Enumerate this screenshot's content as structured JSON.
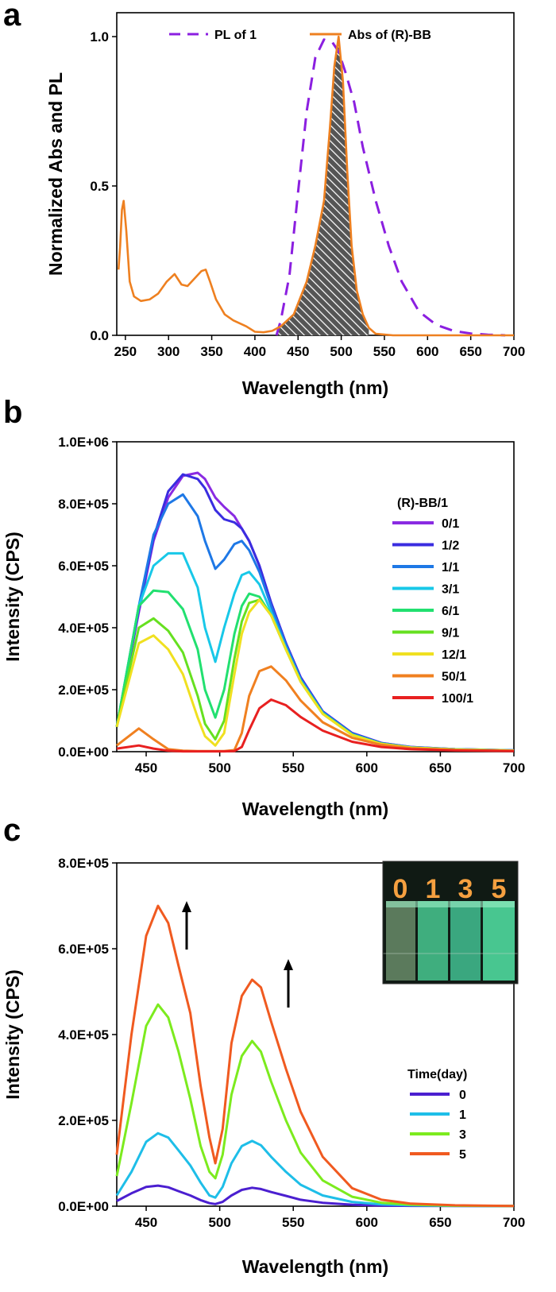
{
  "chart_data": [
    {
      "panel_label": "a",
      "type": "line",
      "xlabel": "Wavelength (nm)",
      "ylabel": "Normalized Abs and PL",
      "xlim": [
        240,
        700
      ],
      "ylim": [
        0,
        1.08
      ],
      "x_ticks": [
        "250",
        "300",
        "350",
        "400",
        "450",
        "500",
        "550",
        "600",
        "650",
        "700"
      ],
      "y_ticks": [
        "0.0",
        "0.5",
        "1.0"
      ],
      "legend_position": "top",
      "overlap_fill": "hatched grey area under the Abs curve between 425 and 530 nm",
      "series": [
        {
          "name": "PL of  1",
          "color": "#8B1FE0",
          "dash": "dashed",
          "x": [
            425,
            430,
            440,
            450,
            460,
            470,
            480,
            490,
            497,
            505,
            515,
            525,
            540,
            555,
            570,
            590,
            610,
            630,
            650,
            670,
            690
          ],
          "y": [
            0.0,
            0.05,
            0.2,
            0.48,
            0.75,
            0.93,
            0.99,
            0.98,
            0.95,
            0.88,
            0.78,
            0.63,
            0.45,
            0.3,
            0.18,
            0.08,
            0.035,
            0.015,
            0.006,
            0.002,
            0.0
          ]
        },
        {
          "name": "Abs of (R)-BB",
          "color": "#EE8020",
          "dash": "solid",
          "x": [
            242,
            244,
            246,
            248,
            251,
            255,
            260,
            268,
            278,
            288,
            298,
            307,
            315,
            322,
            330,
            338,
            343,
            348,
            355,
            365,
            375,
            390,
            400,
            410,
            420,
            430,
            445,
            460,
            470,
            480,
            487,
            492,
            497,
            502,
            507,
            512,
            518,
            525,
            532,
            540,
            560,
            600,
            650,
            700
          ],
          "y": [
            0.22,
            0.3,
            0.42,
            0.45,
            0.35,
            0.18,
            0.13,
            0.115,
            0.12,
            0.14,
            0.18,
            0.205,
            0.17,
            0.165,
            0.19,
            0.215,
            0.22,
            0.18,
            0.12,
            0.07,
            0.05,
            0.03,
            0.012,
            0.01,
            0.015,
            0.03,
            0.07,
            0.18,
            0.3,
            0.45,
            0.7,
            0.9,
            1.0,
            0.85,
            0.55,
            0.3,
            0.15,
            0.07,
            0.025,
            0.005,
            0.0,
            0.0,
            0.0,
            0.0
          ]
        }
      ]
    },
    {
      "panel_label": "b",
      "type": "line",
      "xlabel": "Wavelength (nm)",
      "ylabel": "Intensity (CPS)",
      "xlim": [
        430,
        700
      ],
      "ylim": [
        0,
        1000000
      ],
      "x_ticks": [
        "450",
        "500",
        "550",
        "600",
        "650",
        "700"
      ],
      "y_ticks": [
        "0.0E+00",
        "2.0E+05",
        "4.0E+05",
        "6.0E+05",
        "8.0E+05",
        "1.0E+06"
      ],
      "legend_title": "(R)-BB/1",
      "legend_position": "right",
      "x": [
        430,
        445,
        455,
        465,
        475,
        485,
        490,
        497,
        503,
        510,
        515,
        520,
        527,
        535,
        545,
        555,
        570,
        590,
        610,
        630,
        660,
        700
      ],
      "series": [
        {
          "name": "0/1",
          "color": "#8A2BE2",
          "values": [
            80000,
            450000,
            680000,
            820000,
            890000,
            900000,
            880000,
            820000,
            790000,
            760000,
            720000,
            680000,
            600000,
            480000,
            350000,
            240000,
            130000,
            60000,
            28000,
            15000,
            8000,
            4000
          ]
        },
        {
          "name": "1/2",
          "color": "#3A2DE0",
          "values": [
            80000,
            460000,
            690000,
            840000,
            895000,
            880000,
            850000,
            780000,
            750000,
            740000,
            720000,
            680000,
            600000,
            480000,
            350000,
            240000,
            130000,
            60000,
            28000,
            15000,
            8000,
            4000
          ]
        },
        {
          "name": "1/1",
          "color": "#1E78E6",
          "values": [
            80000,
            470000,
            700000,
            800000,
            830000,
            760000,
            680000,
            590000,
            620000,
            670000,
            680000,
            650000,
            580000,
            470000,
            345000,
            235000,
            128000,
            58000,
            27000,
            14000,
            8000,
            4000
          ]
        },
        {
          "name": "3/1",
          "color": "#18C8E8",
          "values": [
            80000,
            470000,
            600000,
            640000,
            640000,
            530000,
            400000,
            290000,
            400000,
            510000,
            570000,
            580000,
            540000,
            450000,
            335000,
            230000,
            125000,
            56000,
            26000,
            14000,
            7000,
            4000
          ]
        },
        {
          "name": "6/1",
          "color": "#22E070",
          "values": [
            80000,
            470000,
            520000,
            515000,
            460000,
            330000,
            200000,
            110000,
            200000,
            380000,
            470000,
            510000,
            500000,
            440000,
            330000,
            228000,
            124000,
            55000,
            26000,
            13000,
            7000,
            3500
          ]
        },
        {
          "name": "9/1",
          "color": "#66E020",
          "values": [
            80000,
            400000,
            430000,
            390000,
            320000,
            180000,
            90000,
            40000,
            100000,
            300000,
            420000,
            480000,
            490000,
            440000,
            330000,
            226000,
            122000,
            54000,
            25000,
            13000,
            7000,
            3500
          ]
        },
        {
          "name": "12/1",
          "color": "#F0E020",
          "values": [
            80000,
            350000,
            375000,
            330000,
            250000,
            110000,
            50000,
            20000,
            60000,
            250000,
            380000,
            450000,
            490000,
            440000,
            330000,
            226000,
            122000,
            54000,
            25000,
            13000,
            7000,
            3500
          ]
        },
        {
          "name": "50/1",
          "color": "#F08020",
          "values": [
            20000,
            75000,
            40000,
            8000,
            3000,
            2000,
            2000,
            2000,
            2000,
            5000,
            60000,
            180000,
            260000,
            275000,
            230000,
            165000,
            95000,
            45000,
            22000,
            11000,
            5000,
            2500
          ]
        },
        {
          "name": "100/1",
          "color": "#E82020",
          "values": [
            10000,
            20000,
            10000,
            3000,
            1000,
            1000,
            1000,
            1000,
            1000,
            2000,
            15000,
            70000,
            140000,
            168000,
            150000,
            112000,
            68000,
            32000,
            15000,
            8000,
            4000,
            2000
          ]
        }
      ]
    },
    {
      "panel_label": "c",
      "type": "line",
      "xlabel": "Wavelength (nm)",
      "ylabel": "Intensity (CPS)",
      "xlim": [
        430,
        700
      ],
      "ylim": [
        0,
        800000
      ],
      "x_ticks": [
        "450",
        "500",
        "550",
        "600",
        "650",
        "700"
      ],
      "y_ticks": [
        "0.0E+00",
        "2.0E+05",
        "4.0E+05",
        "6.0E+05",
        "8.0E+05"
      ],
      "legend_title": "Time(day)",
      "legend_position": "bottom-right",
      "inset_labels": [
        "0",
        "1",
        "3",
        "5"
      ],
      "x": [
        430,
        440,
        450,
        458,
        465,
        472,
        480,
        487,
        493,
        497,
        502,
        508,
        515,
        522,
        528,
        535,
        545,
        555,
        570,
        590,
        610,
        630,
        660,
        700
      ],
      "series": [
        {
          "name": "0",
          "color": "#4B1FD0",
          "values": [
            12000,
            30000,
            45000,
            48000,
            44000,
            35000,
            25000,
            14000,
            7000,
            5000,
            10000,
            25000,
            38000,
            43000,
            40000,
            33000,
            24000,
            15000,
            8000,
            3500,
            1500,
            800,
            300,
            100
          ]
        },
        {
          "name": "1",
          "color": "#1EBEE8",
          "values": [
            25000,
            80000,
            150000,
            170000,
            160000,
            130000,
            95000,
            55000,
            25000,
            20000,
            45000,
            100000,
            140000,
            152000,
            142000,
            115000,
            80000,
            50000,
            25000,
            10000,
            4000,
            2000,
            800,
            300
          ]
        },
        {
          "name": "3",
          "color": "#7CEB1E",
          "values": [
            70000,
            240000,
            420000,
            470000,
            440000,
            360000,
            250000,
            140000,
            80000,
            65000,
            120000,
            260000,
            350000,
            385000,
            360000,
            290000,
            200000,
            125000,
            60000,
            22000,
            8000,
            3500,
            1200,
            400
          ]
        },
        {
          "name": "5",
          "color": "#F05A20",
          "values": [
            120000,
            400000,
            630000,
            700000,
            660000,
            560000,
            450000,
            280000,
            160000,
            100000,
            180000,
            380000,
            490000,
            528000,
            510000,
            430000,
            320000,
            220000,
            115000,
            42000,
            15000,
            6000,
            2000,
            600
          ]
        }
      ]
    }
  ]
}
